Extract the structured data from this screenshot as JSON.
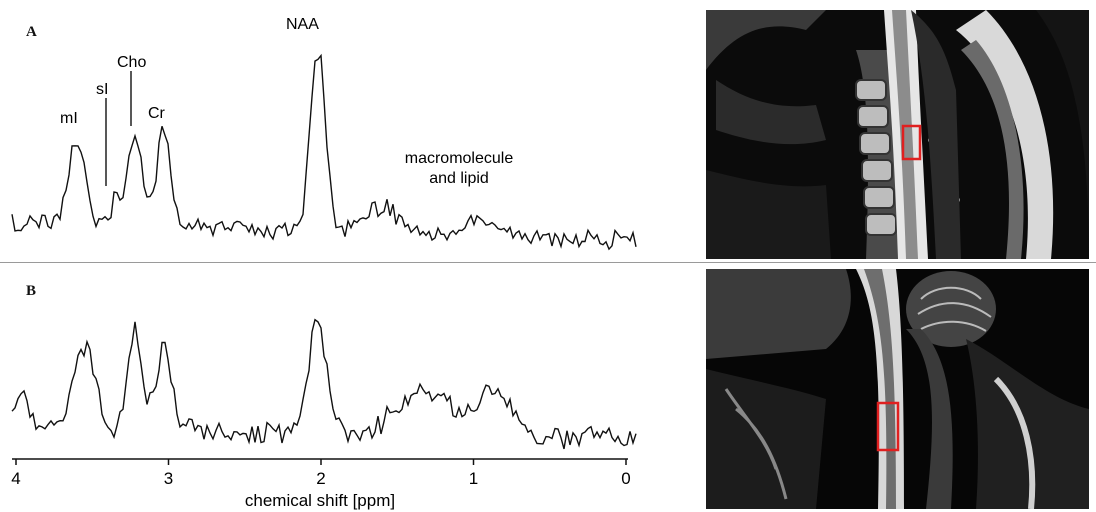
{
  "figure": {
    "panels": [
      {
        "label": "A"
      },
      {
        "label": "B"
      }
    ],
    "colors": {
      "trace": "#111111",
      "roi": "#e02020",
      "mri_bg": "#080808"
    }
  },
  "chart_data": [
    {
      "type": "line",
      "panel": "A",
      "x_unit": "ppm",
      "x_reversed": true,
      "xlim": [
        4.1,
        -0.2
      ],
      "peaks": [
        {
          "label": "mI",
          "x": 3.56
        },
        {
          "label": "sI",
          "x": 3.35
        },
        {
          "label": "Cho",
          "x": 3.22
        },
        {
          "label": "Cr",
          "x": 3.03
        },
        {
          "label": "NAA",
          "x": 2.02
        }
      ],
      "annotations": [
        "mI",
        "sI",
        "Cho",
        "Cr",
        "NAA",
        "macromolecule",
        "and lipid"
      ],
      "grid": false
    },
    {
      "type": "line",
      "panel": "B",
      "x_unit": "ppm",
      "x_reversed": true,
      "xlim": [
        4.1,
        -0.2
      ],
      "xticks": [
        4,
        3,
        2,
        1,
        0
      ],
      "xtick_labels": [
        "4",
        "3",
        "2",
        "1",
        "0"
      ],
      "xlabel": "chemical shift [ppm]",
      "grid": false
    }
  ]
}
